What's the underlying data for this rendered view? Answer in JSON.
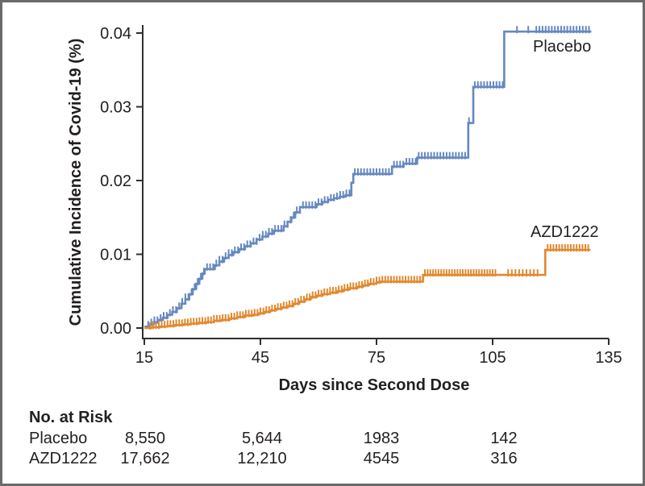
{
  "figure": {
    "series_labels": {
      "placebo": "Placebo",
      "azd1222": "AZD1222"
    }
  },
  "chart_data": {
    "type": "line",
    "subtype": "kaplan-meier-step",
    "title": "",
    "xlabel": "Days since Second Dose",
    "ylabel": "Cumulative Incidence of Covid-19 (%)",
    "xlim": [
      15,
      135
    ],
    "ylim": [
      0.0,
      0.04
    ],
    "grid": false,
    "x_ticks": [
      "15",
      "45",
      "75",
      "105",
      "135"
    ],
    "y_ticks": [
      "0.00",
      "0.01",
      "0.02",
      "0.03",
      "0.04"
    ],
    "series": [
      {
        "name": "Placebo",
        "color": "#6588c1",
        "end_day": 130.5,
        "steps": [
          [
            15,
            0.0002
          ],
          [
            16.2,
            0.0005
          ],
          [
            17.4,
            0.0008
          ],
          [
            18.6,
            0.0011
          ],
          [
            19.8,
            0.0014
          ],
          [
            21,
            0.0018
          ],
          [
            22.2,
            0.0022
          ],
          [
            23.4,
            0.0027
          ],
          [
            24.6,
            0.0033
          ],
          [
            25.6,
            0.0039
          ],
          [
            26.6,
            0.0046
          ],
          [
            27.5,
            0.0053
          ],
          [
            28.4,
            0.006
          ],
          [
            29.2,
            0.0067
          ],
          [
            30,
            0.0074
          ],
          [
            30.6,
            0.008
          ],
          [
            33.2,
            0.0085
          ],
          [
            34.4,
            0.009
          ],
          [
            35.6,
            0.0095
          ],
          [
            36.8,
            0.0099
          ],
          [
            38,
            0.0103
          ],
          [
            39.5,
            0.0107
          ],
          [
            41,
            0.0111
          ],
          [
            42.5,
            0.0115
          ],
          [
            44,
            0.012
          ],
          [
            45.5,
            0.0124
          ],
          [
            47,
            0.0128
          ],
          [
            48.5,
            0.0132
          ],
          [
            51,
            0.0138
          ],
          [
            52,
            0.0144
          ],
          [
            53,
            0.015
          ],
          [
            54,
            0.0157
          ],
          [
            55.2,
            0.0164
          ],
          [
            59.5,
            0.0168
          ],
          [
            61,
            0.0171
          ],
          [
            62.5,
            0.0174
          ],
          [
            64,
            0.0176
          ],
          [
            65.5,
            0.0178
          ],
          [
            67,
            0.018
          ],
          [
            68.5,
            0.0197
          ],
          [
            69,
            0.0209
          ],
          [
            79,
            0.0219
          ],
          [
            82,
            0.0223
          ],
          [
            85.5,
            0.0231
          ],
          [
            98.7,
            0.0278
          ],
          [
            100,
            0.0327
          ],
          [
            108,
            0.0402
          ]
        ],
        "censor_runs": [
          {
            "from": 16,
            "to": 68.2,
            "every": 0.8
          },
          {
            "from": 69.4,
            "to": 78.8,
            "every": 0.8
          },
          {
            "from": 79.5,
            "to": 85.2,
            "every": 0.8
          },
          {
            "from": 85.9,
            "to": 98.4,
            "every": 0.8
          },
          {
            "from": 98.9,
            "to": 98.9,
            "every": 1
          },
          {
            "from": 100.4,
            "to": 107.8,
            "every": 0.8
          },
          {
            "from": 111.3,
            "to": 111.3,
            "every": 1
          },
          {
            "from": 114.2,
            "to": 114.2,
            "every": 1
          },
          {
            "from": 116.3,
            "to": 130.4,
            "every": 0.8
          }
        ]
      },
      {
        "name": "AZD1222",
        "color": "#e2892f",
        "end_day": 130.3,
        "steps": [
          [
            15,
            0.0
          ],
          [
            17,
            0.0001
          ],
          [
            19,
            0.0002
          ],
          [
            21,
            0.0003
          ],
          [
            23,
            0.0004
          ],
          [
            25,
            0.0005
          ],
          [
            27,
            0.0006
          ],
          [
            29,
            0.0007
          ],
          [
            31,
            0.0008
          ],
          [
            33,
            0.001
          ],
          [
            35,
            0.0011
          ],
          [
            37,
            0.0013
          ],
          [
            39,
            0.0015
          ],
          [
            41,
            0.0017
          ],
          [
            43,
            0.0018
          ],
          [
            44.5,
            0.002
          ],
          [
            46,
            0.0022
          ],
          [
            47.5,
            0.0024
          ],
          [
            49,
            0.0026
          ],
          [
            50.5,
            0.0028
          ],
          [
            52,
            0.003
          ],
          [
            53.5,
            0.0033
          ],
          [
            55,
            0.0036
          ],
          [
            56.5,
            0.0039
          ],
          [
            58,
            0.0042
          ],
          [
            59.5,
            0.0044
          ],
          [
            61,
            0.0046
          ],
          [
            63,
            0.0048
          ],
          [
            65,
            0.005
          ],
          [
            66.5,
            0.0052
          ],
          [
            68,
            0.0054
          ],
          [
            70,
            0.0056
          ],
          [
            71.5,
            0.0058
          ],
          [
            73,
            0.006
          ],
          [
            75,
            0.0062
          ],
          [
            76,
            0.0063
          ],
          [
            87,
            0.0072
          ],
          [
            118.6,
            0.0106
          ]
        ],
        "censor_runs": [
          {
            "from": 16.5,
            "to": 86.8,
            "every": 0.75
          },
          {
            "from": 87.5,
            "to": 106,
            "every": 0.7
          },
          {
            "from": 109,
            "to": 117.5,
            "every": 0.95
          },
          {
            "from": 119.2,
            "to": 130.2,
            "every": 0.75
          }
        ]
      }
    ]
  },
  "risk_table": {
    "title": "No. at Risk",
    "rows": [
      {
        "label": "Placebo",
        "values": [
          "8,550",
          "5,644",
          "1983",
          "142"
        ]
      },
      {
        "label": "AZD1222",
        "values": [
          "17,662",
          "12,210",
          "4545",
          "316"
        ]
      }
    ]
  }
}
